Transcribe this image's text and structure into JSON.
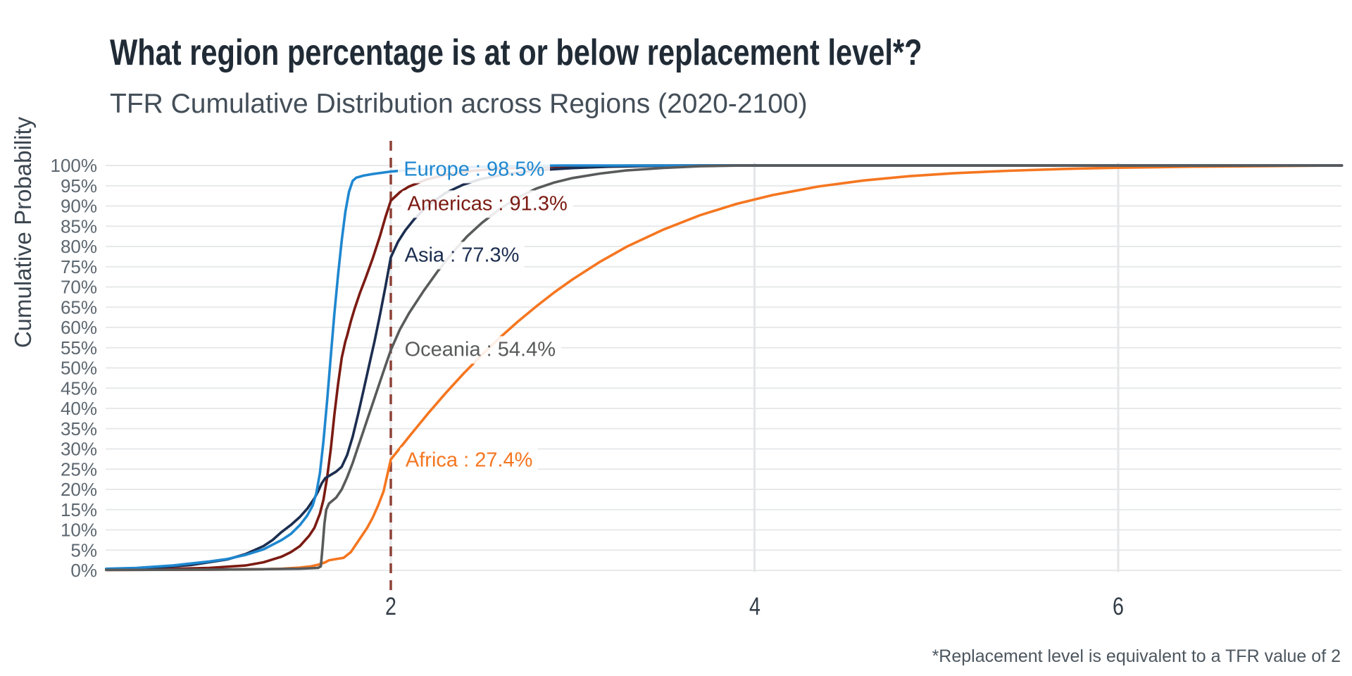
{
  "page": {
    "title": "What region percentage is at or below replacement level*?",
    "subtitle": "TFR Cumulative Distribution across Regions (2020-2100)",
    "footnote": "*Replacement level is equivalent to a TFR value of 2",
    "background_color": "#ffffff",
    "title_color": "#202b36",
    "subtitle_color": "#434e58"
  },
  "chart_data": {
    "type": "line",
    "title": "What region percentage is at or below replacement level*?",
    "subtitle": "TFR Cumulative Distribution across Regions (2020-2100)",
    "xlabel": "",
    "ylabel": "Cumulative Probability",
    "xlim": [
      0.435,
      7.23
    ],
    "ylim": [
      0,
      1
    ],
    "grid": true,
    "gridline_color": "#e7e9ea",
    "x_tick_labels": [
      "2",
      "4",
      "6"
    ],
    "x_tick_values": [
      2,
      4,
      6
    ],
    "y_tick_labels": [
      "0%",
      "5%",
      "10%",
      "15%",
      "20%",
      "25%",
      "30%",
      "35%",
      "40%",
      "45%",
      "50%",
      "55%",
      "60%",
      "65%",
      "70%",
      "75%",
      "80%",
      "85%",
      "90%",
      "95%",
      "100%"
    ],
    "y_tick_values": [
      0,
      0.05,
      0.1,
      0.15,
      0.2,
      0.25,
      0.3,
      0.35,
      0.4,
      0.45,
      0.5,
      0.55,
      0.6,
      0.65,
      0.7,
      0.75,
      0.8,
      0.85,
      0.9,
      0.95,
      1.0
    ],
    "axis_text_color": "#5d6770",
    "reference_line": {
      "x": 2,
      "style": "dashed",
      "color": "#8e4136",
      "meaning": "Replacement level (TFR = 2)"
    },
    "series": [
      {
        "name": "Africa",
        "color": "#f57620",
        "cdf_at_tfr2_percent": 27.4,
        "label": "Africa : 27.4%",
        "label_anchor": {
          "x": 2.05,
          "y": 0.272
        },
        "points": [
          [
            0.435,
            0.001
          ],
          [
            1.0,
            0.002
          ],
          [
            1.3,
            0.003
          ],
          [
            1.4,
            0.004
          ],
          [
            1.5,
            0.007
          ],
          [
            1.56,
            0.01
          ],
          [
            1.6,
            0.014
          ],
          [
            1.64,
            0.02
          ],
          [
            1.66,
            0.025
          ],
          [
            1.7,
            0.028
          ],
          [
            1.74,
            0.031
          ],
          [
            1.78,
            0.045
          ],
          [
            1.81,
            0.065
          ],
          [
            1.84,
            0.085
          ],
          [
            1.87,
            0.105
          ],
          [
            1.9,
            0.13
          ],
          [
            1.93,
            0.16
          ],
          [
            1.96,
            0.195
          ],
          [
            2.0,
            0.274
          ],
          [
            2.1,
            0.33
          ],
          [
            2.2,
            0.385
          ],
          [
            2.3,
            0.437
          ],
          [
            2.4,
            0.486
          ],
          [
            2.5,
            0.532
          ],
          [
            2.6,
            0.575
          ],
          [
            2.7,
            0.615
          ],
          [
            2.8,
            0.652
          ],
          [
            2.9,
            0.687
          ],
          [
            3.0,
            0.719
          ],
          [
            3.15,
            0.762
          ],
          [
            3.3,
            0.8
          ],
          [
            3.5,
            0.842
          ],
          [
            3.7,
            0.877
          ],
          [
            3.9,
            0.905
          ],
          [
            4.1,
            0.927
          ],
          [
            4.35,
            0.948
          ],
          [
            4.6,
            0.963
          ],
          [
            4.85,
            0.9735
          ],
          [
            5.1,
            0.981
          ],
          [
            5.4,
            0.987
          ],
          [
            5.7,
            0.9915
          ],
          [
            6.0,
            0.9945
          ],
          [
            6.4,
            0.997
          ],
          [
            6.8,
            0.9985
          ],
          [
            7.23,
            1.0
          ]
        ]
      },
      {
        "name": "Americas",
        "color": "#7b1b13",
        "cdf_at_tfr2_percent": 91.3,
        "label": "Americas : 91.3%",
        "label_anchor": {
          "x": 2.06,
          "y": 0.905
        },
        "points": [
          [
            0.435,
            0.002
          ],
          [
            0.8,
            0.004
          ],
          [
            1.0,
            0.006
          ],
          [
            1.2,
            0.012
          ],
          [
            1.3,
            0.02
          ],
          [
            1.4,
            0.034
          ],
          [
            1.45,
            0.045
          ],
          [
            1.5,
            0.06
          ],
          [
            1.55,
            0.085
          ],
          [
            1.58,
            0.105
          ],
          [
            1.61,
            0.14
          ],
          [
            1.63,
            0.175
          ],
          [
            1.65,
            0.23
          ],
          [
            1.67,
            0.3
          ],
          [
            1.69,
            0.385
          ],
          [
            1.71,
            0.46
          ],
          [
            1.73,
            0.525
          ],
          [
            1.75,
            0.565
          ],
          [
            1.76,
            0.58
          ],
          [
            1.78,
            0.615
          ],
          [
            1.8,
            0.645
          ],
          [
            1.83,
            0.685
          ],
          [
            1.86,
            0.72
          ],
          [
            1.9,
            0.77
          ],
          [
            1.94,
            0.825
          ],
          [
            1.97,
            0.872
          ],
          [
            2.0,
            0.913
          ],
          [
            2.05,
            0.934
          ],
          [
            2.1,
            0.948
          ],
          [
            2.2,
            0.966
          ],
          [
            2.3,
            0.977
          ],
          [
            2.45,
            0.987
          ],
          [
            2.6,
            0.9925
          ],
          [
            2.8,
            0.996
          ],
          [
            3.0,
            0.998
          ],
          [
            3.25,
            0.9995
          ],
          [
            3.45,
            1.0
          ],
          [
            7.23,
            1.0
          ]
        ]
      },
      {
        "name": "Asia",
        "color": "#1c2e50",
        "cdf_at_tfr2_percent": 77.3,
        "label": "Asia : 77.3%",
        "label_anchor": {
          "x": 2.045,
          "y": 0.778
        },
        "points": [
          [
            0.435,
            0.003
          ],
          [
            0.7,
            0.007
          ],
          [
            0.9,
            0.013
          ],
          [
            1.1,
            0.027
          ],
          [
            1.2,
            0.04
          ],
          [
            1.3,
            0.06
          ],
          [
            1.35,
            0.075
          ],
          [
            1.4,
            0.095
          ],
          [
            1.45,
            0.112
          ],
          [
            1.5,
            0.132
          ],
          [
            1.54,
            0.152
          ],
          [
            1.58,
            0.178
          ],
          [
            1.6,
            0.195
          ],
          [
            1.62,
            0.215
          ],
          [
            1.64,
            0.228
          ],
          [
            1.67,
            0.236
          ],
          [
            1.7,
            0.244
          ],
          [
            1.73,
            0.256
          ],
          [
            1.76,
            0.285
          ],
          [
            1.79,
            0.33
          ],
          [
            1.82,
            0.385
          ],
          [
            1.85,
            0.445
          ],
          [
            1.88,
            0.505
          ],
          [
            1.91,
            0.565
          ],
          [
            1.94,
            0.63
          ],
          [
            1.97,
            0.7
          ],
          [
            2.0,
            0.773
          ],
          [
            2.04,
            0.812
          ],
          [
            2.08,
            0.84
          ],
          [
            2.13,
            0.868
          ],
          [
            2.2,
            0.9
          ],
          [
            2.3,
            0.932
          ],
          [
            2.4,
            0.953
          ],
          [
            2.5,
            0.967
          ],
          [
            2.65,
            0.98
          ],
          [
            2.8,
            0.988
          ],
          [
            3.0,
            0.9935
          ],
          [
            3.2,
            0.997
          ],
          [
            3.45,
            0.999
          ],
          [
            3.7,
            1.0
          ],
          [
            7.23,
            1.0
          ]
        ]
      },
      {
        "name": "Europe",
        "color": "#1e87d0",
        "cdf_at_tfr2_percent": 98.5,
        "label": "Europe : 98.5%",
        "label_anchor": {
          "x": 2.04,
          "y": 0.99
        },
        "points": [
          [
            0.435,
            0.004
          ],
          [
            0.6,
            0.006
          ],
          [
            0.8,
            0.012
          ],
          [
            1.0,
            0.022
          ],
          [
            1.1,
            0.028
          ],
          [
            1.2,
            0.038
          ],
          [
            1.3,
            0.052
          ],
          [
            1.4,
            0.075
          ],
          [
            1.45,
            0.09
          ],
          [
            1.5,
            0.112
          ],
          [
            1.54,
            0.135
          ],
          [
            1.57,
            0.16
          ],
          [
            1.59,
            0.19
          ],
          [
            1.61,
            0.24
          ],
          [
            1.63,
            0.32
          ],
          [
            1.65,
            0.42
          ],
          [
            1.67,
            0.53
          ],
          [
            1.69,
            0.635
          ],
          [
            1.71,
            0.73
          ],
          [
            1.73,
            0.815
          ],
          [
            1.75,
            0.885
          ],
          [
            1.77,
            0.935
          ],
          [
            1.79,
            0.962
          ],
          [
            1.81,
            0.97
          ],
          [
            1.85,
            0.975
          ],
          [
            1.9,
            0.979
          ],
          [
            1.95,
            0.982
          ],
          [
            2.0,
            0.985
          ],
          [
            2.1,
            0.9885
          ],
          [
            2.2,
            0.991
          ],
          [
            2.35,
            0.994
          ],
          [
            2.5,
            0.9965
          ],
          [
            2.65,
            0.998
          ],
          [
            2.8,
            0.9993
          ],
          [
            2.95,
            1.0
          ],
          [
            7.23,
            1.0
          ]
        ]
      },
      {
        "name": "Oceania",
        "color": "#595a5a",
        "cdf_at_tfr2_percent": 54.4,
        "label": "Oceania : 54.4%",
        "label_anchor": {
          "x": 2.045,
          "y": 0.545
        },
        "points": [
          [
            0.435,
            0.001
          ],
          [
            1.0,
            0.002
          ],
          [
            1.3,
            0.003
          ],
          [
            1.5,
            0.004
          ],
          [
            1.6,
            0.006
          ],
          [
            1.615,
            0.01
          ],
          [
            1.625,
            0.06
          ],
          [
            1.635,
            0.115
          ],
          [
            1.645,
            0.15
          ],
          [
            1.66,
            0.165
          ],
          [
            1.7,
            0.18
          ],
          [
            1.73,
            0.2
          ],
          [
            1.76,
            0.23
          ],
          [
            1.79,
            0.265
          ],
          [
            1.82,
            0.305
          ],
          [
            1.85,
            0.345
          ],
          [
            1.88,
            0.385
          ],
          [
            1.91,
            0.425
          ],
          [
            1.94,
            0.465
          ],
          [
            1.97,
            0.505
          ],
          [
            2.0,
            0.544
          ],
          [
            2.05,
            0.595
          ],
          [
            2.1,
            0.635
          ],
          [
            2.18,
            0.69
          ],
          [
            2.26,
            0.74
          ],
          [
            2.34,
            0.785
          ],
          [
            2.42,
            0.825
          ],
          [
            2.5,
            0.858
          ],
          [
            2.6,
            0.893
          ],
          [
            2.7,
            0.921
          ],
          [
            2.8,
            0.943
          ],
          [
            2.9,
            0.958
          ],
          [
            3.0,
            0.969
          ],
          [
            3.15,
            0.98
          ],
          [
            3.3,
            0.988
          ],
          [
            3.5,
            0.994
          ],
          [
            3.7,
            0.998
          ],
          [
            3.95,
            1.0
          ],
          [
            7.23,
            1.0
          ]
        ]
      }
    ],
    "footnote": "*Replacement level is equivalent to a TFR value of 2",
    "legend_position": "none (direct labels on curves)"
  }
}
